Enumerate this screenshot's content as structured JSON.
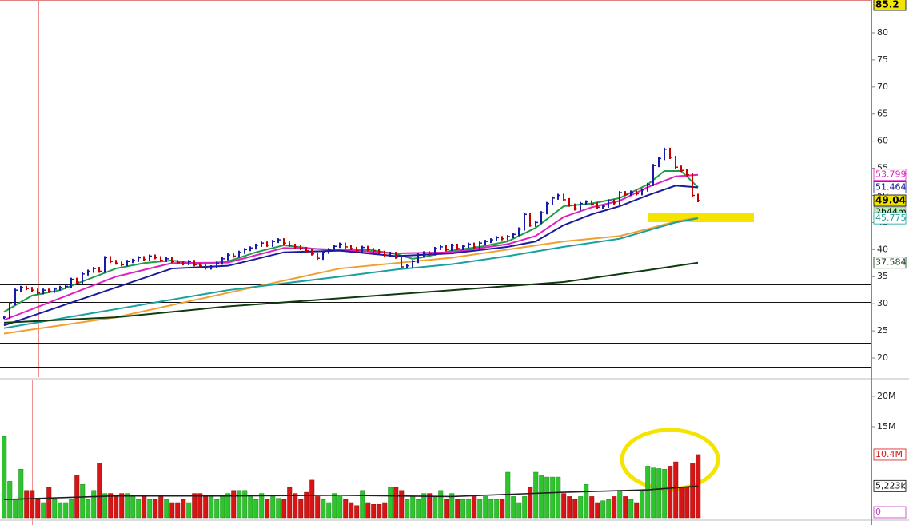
{
  "chart_data": [
    {
      "type": "price",
      "ylim": [
        16.46,
        86.04
      ],
      "yticks": [
        20,
        25,
        30,
        35,
        40,
        45,
        50,
        55,
        60,
        65,
        70,
        75,
        80
      ],
      "up_color": "#1a1aa8",
      "down_color": "#c40000",
      "values": [
        27.5,
        30,
        32.5,
        33,
        32.8,
        32.5,
        32,
        32.5,
        32.3,
        32.7,
        33,
        33.2,
        34.5,
        34,
        35.5,
        36,
        36.5,
        36,
        38.5,
        37.8,
        37.5,
        37.2,
        37.8,
        38,
        38.5,
        38.2,
        38.8,
        38.5,
        38,
        38.3,
        37.8,
        37.6,
        37.4,
        37.8,
        37.2,
        37,
        36.6,
        36.8,
        37.5,
        38.3,
        39,
        38.8,
        39.5,
        40,
        40.3,
        40.8,
        41.2,
        40.8,
        41.5,
        41.8,
        41.2,
        40.8,
        40.5,
        40.2,
        39.8,
        39.2,
        38.4,
        39.5,
        40,
        40.6,
        41,
        40.5,
        40.2,
        39.8,
        40.4,
        40,
        39.8,
        39.5,
        39,
        39.3,
        38.6,
        36.8,
        37,
        37.8,
        39,
        39.4,
        39.2,
        40.2,
        40.5,
        40,
        40.8,
        40.2,
        40.6,
        41,
        40.5,
        41.2,
        41.5,
        41.8,
        42.2,
        42,
        42.4,
        42.8,
        43.8,
        46.5,
        44.5,
        45,
        46.8,
        48.5,
        49.5,
        50,
        49.2,
        48.2,
        47.5,
        48.5,
        48.8,
        48.4,
        47.8,
        48,
        49,
        48.6,
        50.5,
        50.2,
        50.6,
        50.3,
        51,
        52,
        55.5,
        56.8,
        58.5,
        57,
        55.2,
        54.6,
        53.8,
        50,
        49.04
      ],
      "series": [
        {
          "color": "#1f9d4a",
          "x": [
            0,
            5,
            10,
            15,
            20,
            25,
            30,
            35,
            40,
            45,
            50,
            55,
            60,
            65,
            70,
            73,
            75,
            80,
            85,
            90,
            95,
            100,
            105,
            110,
            115,
            118,
            121,
            124
          ],
          "values": [
            28.5,
            31.5,
            32.5,
            34.5,
            36.5,
            37.5,
            38,
            37.3,
            37.8,
            39.5,
            40.8,
            40.2,
            39.8,
            40,
            39.2,
            38.3,
            38.6,
            39.8,
            40.5,
            41.5,
            44,
            48,
            48.5,
            49.5,
            52,
            54.5,
            54.5,
            51.5
          ]
        },
        {
          "color": "#e020c0",
          "x": [
            0,
            10,
            20,
            30,
            40,
            50,
            60,
            70,
            80,
            90,
            95,
            100,
            105,
            110,
            115,
            120,
            124
          ],
          "values": [
            27,
            31,
            35,
            37.5,
            37.6,
            40.3,
            40,
            39.3,
            39.5,
            41,
            42.5,
            46,
            47.8,
            49,
            51.5,
            53.5,
            53.799
          ]
        },
        {
          "color": "#1a1a9a",
          "x": [
            0,
            10,
            20,
            30,
            40,
            50,
            60,
            70,
            80,
            90,
            95,
            100,
            105,
            110,
            115,
            120,
            124
          ],
          "values": [
            26,
            29.5,
            33,
            36.5,
            37,
            39.5,
            39.8,
            38.8,
            39.3,
            40.5,
            41.5,
            44.5,
            46.5,
            48,
            50,
            51.8,
            51.464
          ]
        },
        {
          "color": "#f0a030",
          "x": [
            0,
            20,
            40,
            60,
            70,
            80,
            90,
            100,
            110,
            115,
            120,
            124
          ],
          "values": [
            24.5,
            27.5,
            32,
            36.5,
            37.5,
            38.5,
            40,
            41.5,
            42.5,
            43.8,
            45.2,
            45.9
          ]
        },
        {
          "color": "#1aa0a0",
          "x": [
            0,
            20,
            40,
            60,
            70,
            80,
            90,
            100,
            110,
            115,
            120,
            124
          ],
          "values": [
            25.5,
            29,
            32.5,
            35,
            36.3,
            37.3,
            38.8,
            40.5,
            42,
            43.5,
            45,
            45.775
          ]
        },
        {
          "color": "#103a10",
          "x": [
            0,
            20,
            40,
            60,
            80,
            100,
            115,
            124
          ],
          "values": [
            26.5,
            27.5,
            29.5,
            31,
            32.5,
            34,
            36.2,
            37.584
          ]
        }
      ],
      "hlines": [
        42.4,
        33.56,
        30.32,
        22.8,
        18.38
      ],
      "price_labels": [
        {
          "value": 85.2,
          "color": "#000000",
          "fill": "#f2e600"
        },
        {
          "value": 53.799,
          "color": "#e020c0",
          "fill": "#ffffff"
        },
        {
          "value": 51.464,
          "color": "#1a1a9a",
          "fill": "#ffffff"
        },
        {
          "value": 49.04,
          "color": "#000000",
          "fill": "#f2e600"
        },
        {
          "value": 45.775,
          "color": "#1aa0a0",
          "fill": "#ffffff"
        },
        {
          "value": 37.584,
          "color": "#103a10",
          "fill": "#ffffff"
        }
      ],
      "countdown": "2h44m"
    },
    {
      "type": "volume",
      "ylim": [
        0,
        22.37
      ],
      "yticks": [
        {
          "value": 20,
          "label": "20M"
        },
        {
          "value": 15,
          "label": "15M"
        }
      ],
      "up_color": "#2ec42e",
      "down_color": "#d81515",
      "values": [
        13.4,
        6,
        3,
        8,
        4.5,
        4.5,
        3,
        2.5,
        5,
        3,
        2.5,
        2.5,
        3,
        7,
        5.5,
        3,
        4.5,
        9,
        4,
        4,
        3.5,
        4,
        4,
        3.5,
        3,
        3.5,
        3,
        3,
        3.5,
        3,
        2.5,
        2.5,
        3,
        2.5,
        4,
        4,
        3.5,
        3.5,
        3,
        3.5,
        4,
        4.5,
        4.5,
        4.5,
        3.5,
        3,
        4,
        3,
        3.5,
        3.2,
        3,
        5,
        4,
        3,
        4.2,
        6.2,
        3.5,
        3,
        2.5,
        4,
        3.5,
        3,
        2.5,
        2,
        4.5,
        2.5,
        2.2,
        2.2,
        2.5,
        5,
        5,
        4.5,
        3,
        3.5,
        3,
        4,
        4,
        3.5,
        4.5,
        3,
        4,
        3,
        3,
        3,
        3.5,
        3,
        3.5,
        3,
        3,
        3,
        7.5,
        3.5,
        2.5,
        3.5,
        5,
        7.5,
        7,
        6.7,
        6.7,
        6.7,
        4,
        3.5,
        3,
        3.5,
        5.5,
        3.5,
        2.5,
        2.8,
        3,
        3.5,
        4.5,
        3.5,
        3,
        2.5,
        4.5,
        8.5,
        8.2,
        8.1,
        8,
        8.5,
        9.2,
        5,
        5,
        9,
        10.4
      ],
      "ma": {
        "color": "#202020",
        "x": [
          0,
          20,
          40,
          60,
          80,
          100,
          115,
          124
        ],
        "values": [
          3,
          3.6,
          3.6,
          3.7,
          3.5,
          4.2,
          4.6,
          5.223
        ]
      },
      "value_labels": [
        {
          "value": 10.4,
          "label": "10.4M",
          "color": "#d81515"
        },
        {
          "value": 5.223,
          "label": "5,223k",
          "color": "#000000"
        },
        {
          "value": 0,
          "label": "0",
          "color": "#c040c0"
        }
      ]
    }
  ]
}
